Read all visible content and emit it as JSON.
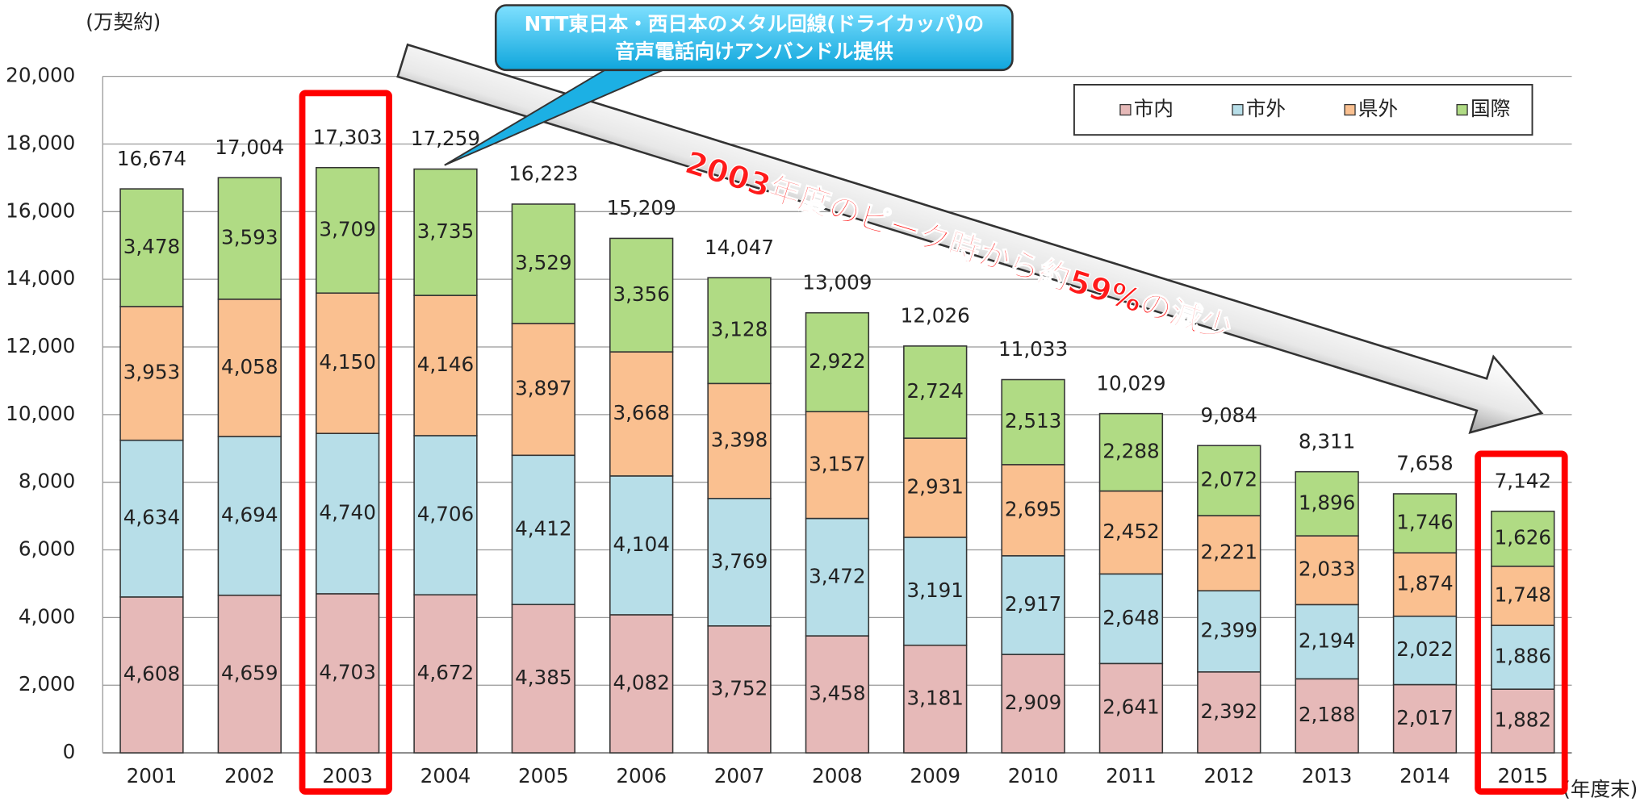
{
  "chart_data": {
    "type": "stacked-bar",
    "y_label": "(万契約)",
    "x_label": "(年度末)",
    "categories": [
      "2001",
      "2002",
      "2003",
      "2004",
      "2005",
      "2006",
      "2007",
      "2008",
      "2009",
      "2010",
      "2011",
      "2012",
      "2013",
      "2014",
      "2015"
    ],
    "series": [
      {
        "name": "市内",
        "color": "#e6b9b8",
        "values": [
          4608,
          4659,
          4703,
          4672,
          4385,
          4082,
          3752,
          3458,
          3181,
          2909,
          2641,
          2392,
          2188,
          2017,
          1882
        ],
        "value_labels": [
          "4,608",
          "4,659",
          "4,703",
          "4,672",
          "4,385",
          "4,082",
          "3,752",
          "3,458",
          "3,181",
          "2,909",
          "2,641",
          "2,392",
          "2,188",
          "2,017",
          "1,882"
        ]
      },
      {
        "name": "市外",
        "color": "#b7dee8",
        "values": [
          4634,
          4694,
          4740,
          4706,
          4412,
          4104,
          3769,
          3472,
          3191,
          2917,
          2648,
          2399,
          2194,
          2022,
          1886
        ],
        "value_labels": [
          "4,634",
          "4,694",
          "4,740",
          "4,706",
          "4,412",
          "4,104",
          "3,769",
          "3,472",
          "3,191",
          "2,917",
          "2,648",
          "2,399",
          "2,194",
          "2,022",
          "1,886"
        ]
      },
      {
        "name": "県外",
        "color": "#fac090",
        "values": [
          3953,
          4058,
          4150,
          4146,
          3897,
          3668,
          3398,
          3157,
          2931,
          2695,
          2452,
          2221,
          2033,
          1874,
          1748
        ],
        "value_labels": [
          "3,953",
          "4,058",
          "4,150",
          "4,146",
          "3,897",
          "3,668",
          "3,398",
          "3,157",
          "2,931",
          "2,695",
          "2,452",
          "2,221",
          "2,033",
          "1,874",
          "1,748"
        ]
      },
      {
        "name": "国際",
        "color": "#b0db84",
        "values": [
          3478,
          3593,
          3709,
          3735,
          3529,
          3356,
          3128,
          2922,
          2724,
          2513,
          2288,
          2072,
          1896,
          1746,
          1626
        ],
        "value_labels": [
          "3,478",
          "3,593",
          "3,709",
          "3,735",
          "3,529",
          "3,356",
          "3,128",
          "2,922",
          "2,724",
          "2,513",
          "2,288",
          "2,072",
          "1,896",
          "1,746",
          "1,626"
        ]
      }
    ],
    "totals": {
      "values": [
        16674,
        17004,
        17303,
        17259,
        16223,
        15209,
        14047,
        13009,
        12026,
        11033,
        10029,
        9084,
        8311,
        7658,
        7142
      ],
      "value_labels": [
        "16,674",
        "17,004",
        "17,303",
        "17,259",
        "16,223",
        "15,209",
        "14,047",
        "13,009",
        "12,026",
        "11,033",
        "10,029",
        "9,084",
        "8,311",
        "7,658",
        "7,142"
      ]
    },
    "ylim": [
      0,
      20000
    ],
    "yticks": [
      0,
      {
        "value": 2000,
        "label": "2,000"
      },
      {
        "value": 4000,
        "label": "4,000"
      },
      {
        "value": 6000,
        "label": "6,000"
      },
      {
        "value": 8000,
        "label": "8,000"
      },
      {
        "value": 10000,
        "label": "10,000"
      },
      {
        "value": 12000,
        "label": "12,000"
      },
      {
        "value": 14000,
        "label": "14,000"
      },
      {
        "value": 16000,
        "label": "16,000"
      },
      {
        "value": 18000,
        "label": "18,000"
      },
      {
        "value": 20000,
        "label": "20,000"
      }
    ],
    "grid": true,
    "legend": "upper right",
    "annotations": {
      "callout": [
        "NTT東日本・西日本のメタル回線(ドライカッパ)の",
        "音声電話向けアンバンドル提供"
      ],
      "arrow_text": "2003年度のピーク時から約59%の減少"
    }
  }
}
